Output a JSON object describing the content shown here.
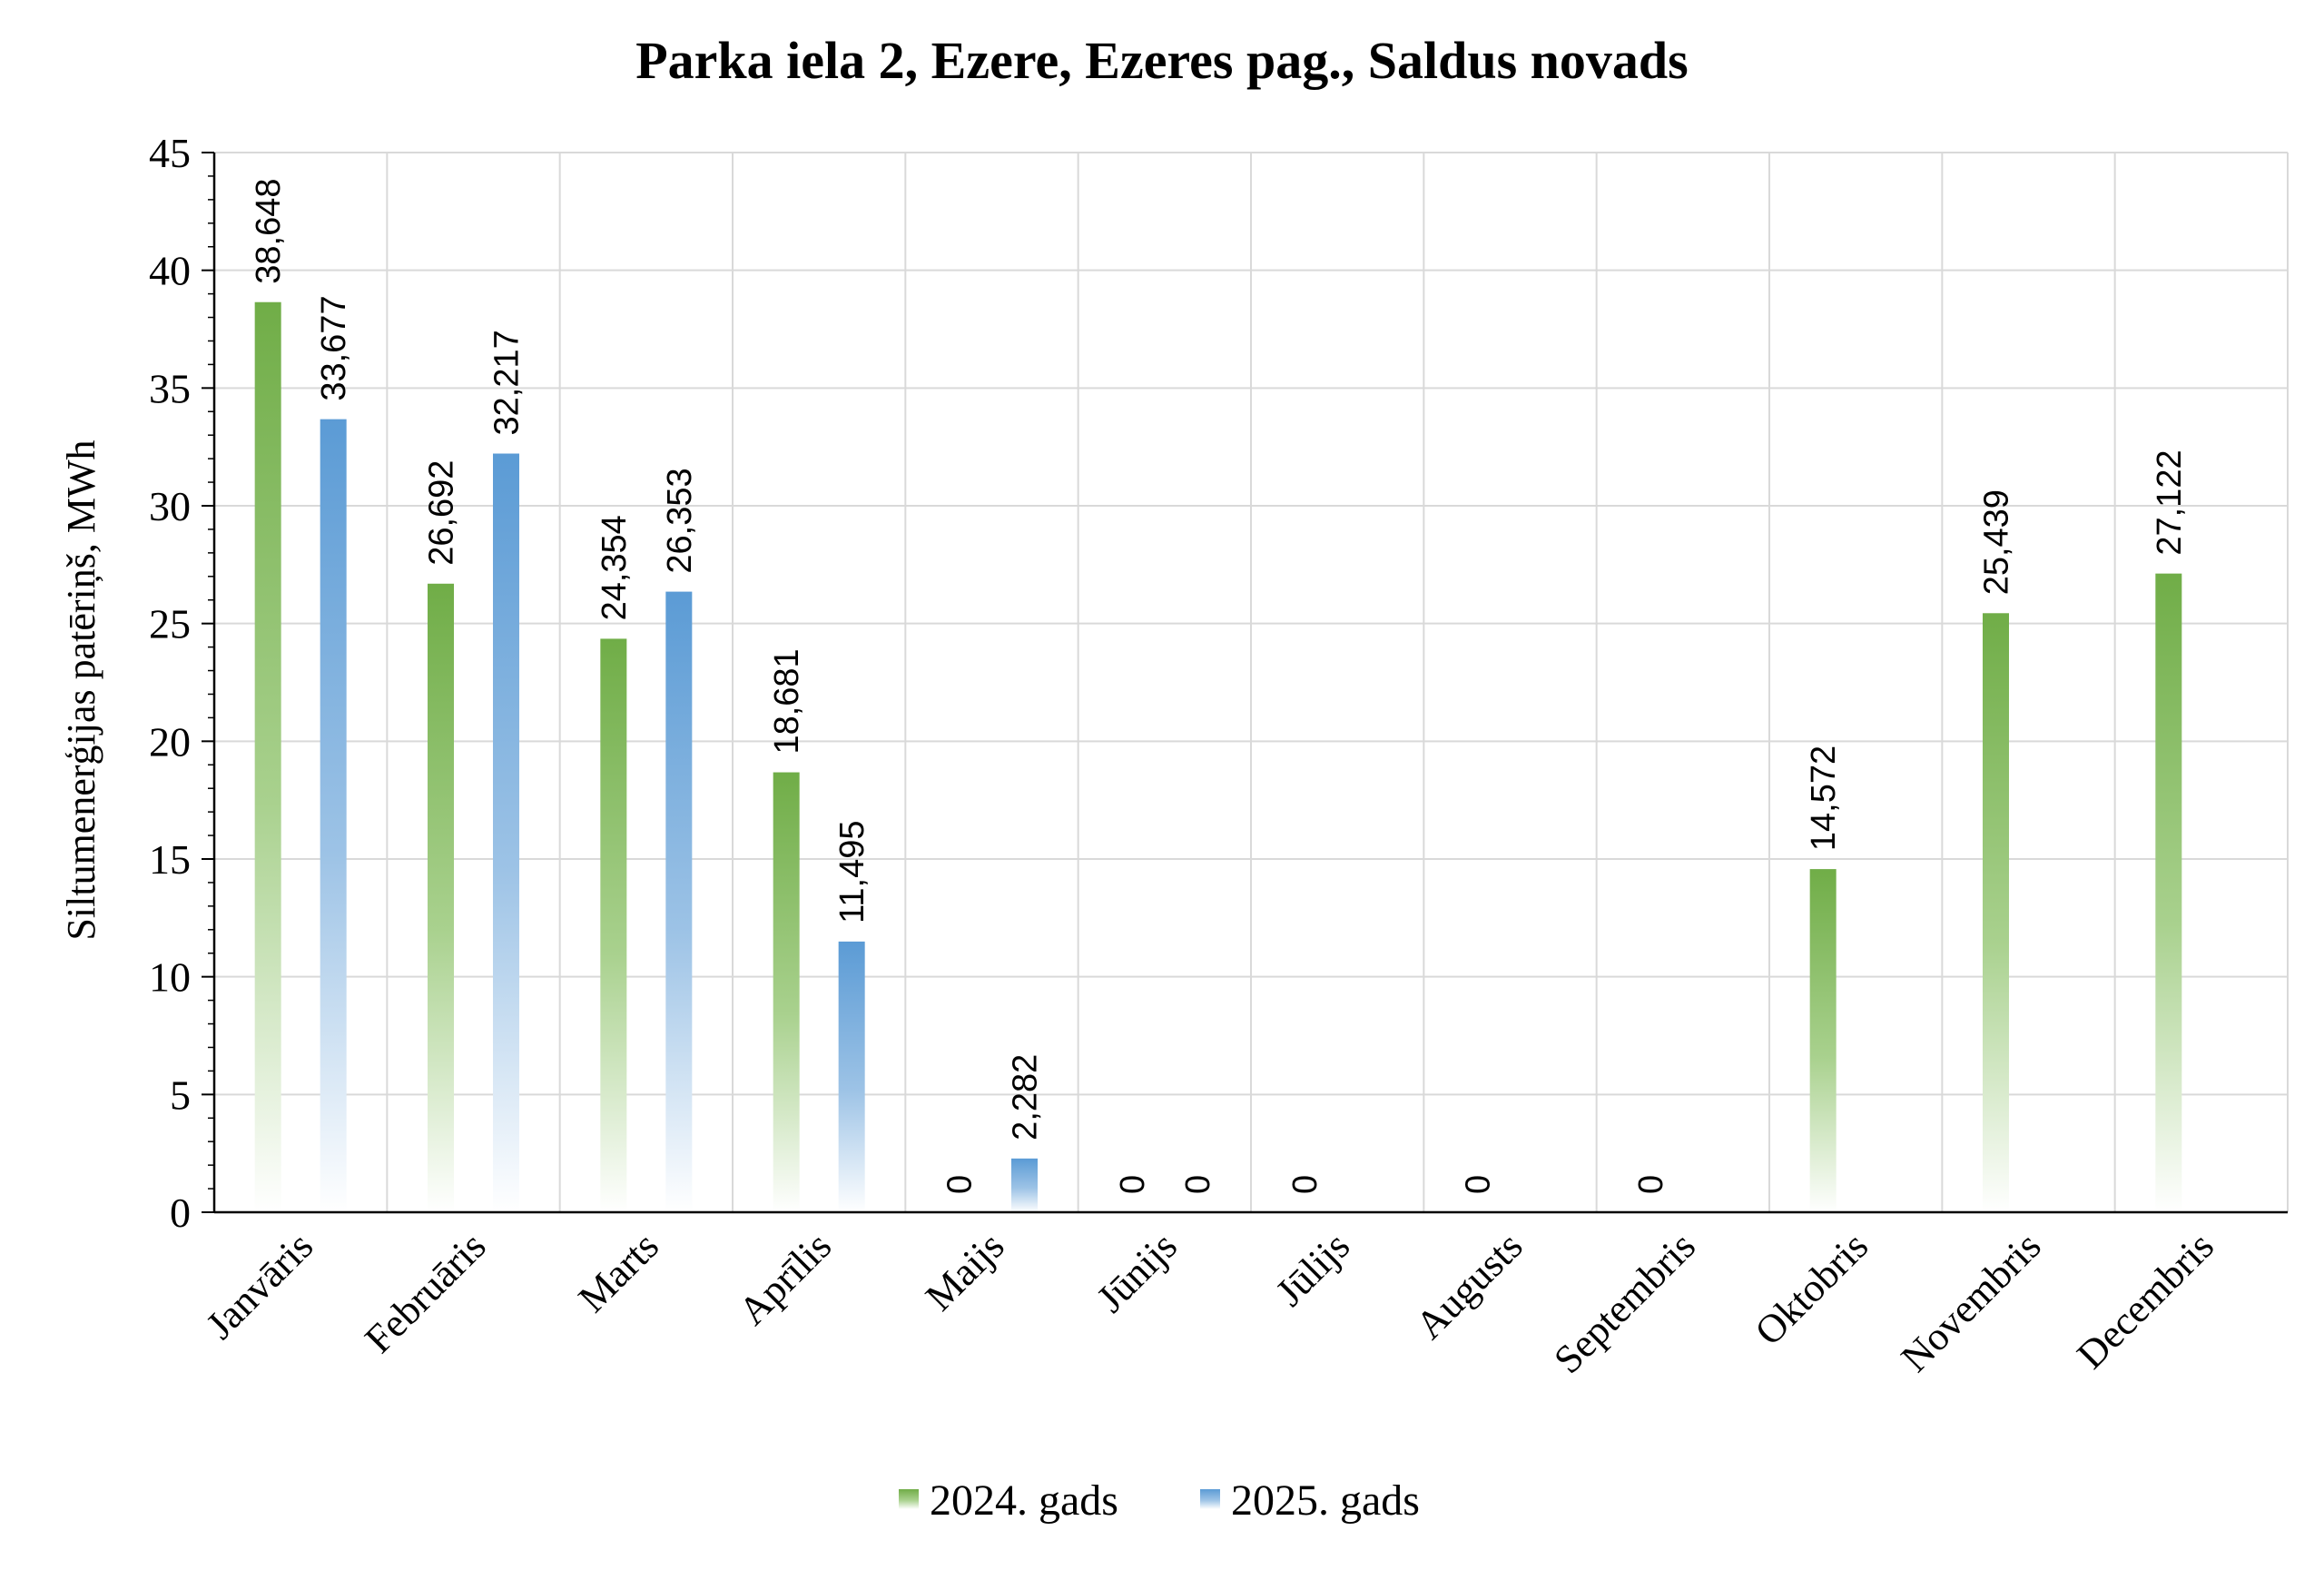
{
  "chart_data": {
    "type": "bar",
    "title": "Parka iela 2, Ezere, Ezeres pag., Saldus novads",
    "ylabel": "Siltumenerģijas patēriņš, MWh",
    "xlabel": "",
    "ylim": [
      0,
      45
    ],
    "yticks": [
      0,
      5,
      10,
      15,
      20,
      25,
      30,
      35,
      40,
      45
    ],
    "grid": true,
    "legend_position": "bottom",
    "categories": [
      "Janvāris",
      "Februāris",
      "Marts",
      "Aprīlis",
      "Maijs",
      "Jūnijs",
      "Jūlijs",
      "Augusts",
      "Septembris",
      "Oktobris",
      "Novembris",
      "Decembris"
    ],
    "series": [
      {
        "name": "2024. gads",
        "color": "#70ad47",
        "values": [
          38.648,
          26.692,
          24.354,
          18.681,
          0,
          0,
          0,
          0,
          0,
          14.572,
          25.439,
          27.122
        ],
        "labels": [
          "38,648",
          "26,692",
          "24,354",
          "18,681",
          "0",
          "0",
          "0",
          "0",
          "0",
          "14,572",
          "25,439",
          "27,122"
        ]
      },
      {
        "name": "2025. gads",
        "color": "#5b9bd5",
        "values": [
          33.677,
          32.217,
          26.353,
          11.495,
          2.282,
          0,
          null,
          null,
          null,
          null,
          null,
          null
        ],
        "labels": [
          "33,677",
          "32,217",
          "26,353",
          "11,495",
          "2,282",
          "0",
          null,
          null,
          null,
          null,
          null,
          null
        ]
      }
    ]
  }
}
